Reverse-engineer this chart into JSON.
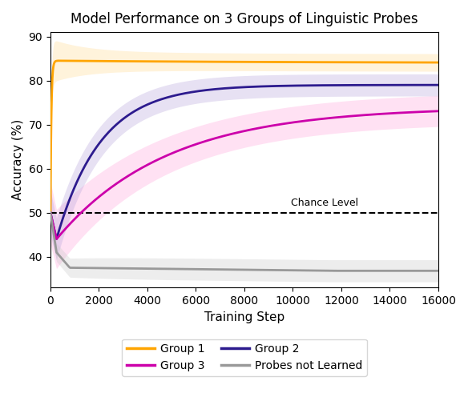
{
  "title": "Model Performance on 3 Groups of Linguistic Probes",
  "xlabel": "Training Step",
  "ylabel": "Accuracy (%)",
  "ylim": [
    33,
    91
  ],
  "xlim": [
    0,
    16000
  ],
  "yticks": [
    40,
    50,
    60,
    70,
    80,
    90
  ],
  "xticks": [
    0,
    2000,
    4000,
    6000,
    8000,
    10000,
    12000,
    14000,
    16000
  ],
  "chance_level": 50,
  "chance_label": "Chance Level",
  "colors": {
    "group1": "#FFA500",
    "group2": "#2D1B8E",
    "group3": "#CC00AA",
    "not_learned": "#999999"
  },
  "fill_colors": {
    "group1": "#FFDD99",
    "group2": "#BBAADD",
    "group3": "#FFAADD",
    "not_learned": "#CCCCCC"
  },
  "alpha_fill": 0.35,
  "legend_labels": [
    "Group 1",
    "Group 2",
    "Group 3",
    "Probes not Learned"
  ],
  "figsize": [
    5.84,
    4.96
  ],
  "dpi": 100,
  "group1": {
    "mean_start": 50,
    "mean_peak": 84.5,
    "mean_end": 84.0,
    "peak_step": 300,
    "std_start": 5.0,
    "std_end": 2.0
  },
  "group2": {
    "mean_start": 50,
    "mean_dip": 44.0,
    "mean_end": 79.0,
    "dip_step": 250,
    "std_start": 5.0,
    "std_end": 2.5
  },
  "group3": {
    "mean_start": 50,
    "mean_dip": 44.0,
    "mean_end": 74.0,
    "dip_step": 250,
    "std_start": 7.0,
    "std_end": 3.5
  },
  "not_learned": {
    "mean_start": 50,
    "mean_dip": 41.0,
    "mean_end": 37.0,
    "dip_step": 250,
    "std_start": 2.0,
    "std_end": 2.5
  }
}
